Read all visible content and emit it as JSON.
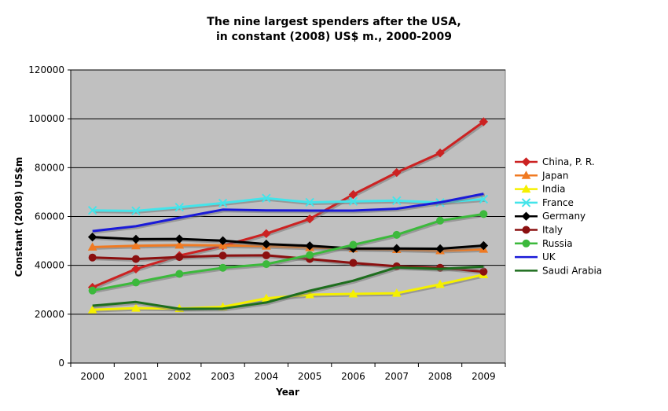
{
  "chart_data": {
    "type": "line",
    "title_lines": [
      "The nine largest spenders after the USA,",
      "in constant (2008) US$ m., 2000-2009"
    ],
    "xlabel": "Year",
    "ylabel": "Constant (2008) US$m",
    "x": [
      "2000",
      "2001",
      "2002",
      "2003",
      "2004",
      "2005",
      "2006",
      "2007",
      "2008",
      "2009"
    ],
    "ylim": [
      0,
      120000
    ],
    "yticks": [
      "0",
      "20000",
      "40000",
      "60000",
      "80000",
      "100000",
      "120000"
    ],
    "ytick_values": [
      0,
      20000,
      40000,
      60000,
      80000,
      100000,
      120000
    ],
    "grid": true,
    "legend_position": "right",
    "plot_background": "#c0c0c0",
    "series": [
      {
        "name": "China, P. R.",
        "color": "#cc2222",
        "marker": "diamond",
        "values": [
          31000,
          38500,
          44000,
          48000,
          53000,
          59000,
          69000,
          78000,
          86000,
          98800
        ]
      },
      {
        "name": "Japan",
        "color": "#f07a22",
        "marker": "triangle",
        "values": [
          47500,
          48000,
          48300,
          48200,
          47900,
          47300,
          46800,
          46500,
          46000,
          46600
        ]
      },
      {
        "name": "India",
        "color": "#f5f000",
        "marker": "triangle",
        "values": [
          21800,
          22500,
          22300,
          23000,
          26500,
          28000,
          28300,
          28600,
          32200,
          36200
        ]
      },
      {
        "name": "France",
        "color": "#44e4ea",
        "marker": "x",
        "values": [
          62500,
          62300,
          63800,
          65500,
          67500,
          65800,
          66200,
          66500,
          65700,
          67100
        ]
      },
      {
        "name": "Germany",
        "color": "#000000",
        "marker": "diamond",
        "values": [
          51600,
          50700,
          50800,
          50100,
          48700,
          48000,
          46900,
          46900,
          46800,
          48100
        ]
      },
      {
        "name": "Italy",
        "color": "#8b1010",
        "marker": "circle",
        "values": [
          43200,
          42600,
          43400,
          44000,
          44100,
          42600,
          41000,
          39600,
          39000,
          37400
        ]
      },
      {
        "name": "Russia",
        "color": "#3cb93c",
        "marker": "circle",
        "values": [
          29700,
          33000,
          36500,
          39000,
          40500,
          44200,
          48400,
          52500,
          58300,
          61000
        ]
      },
      {
        "name": "UK",
        "color": "#1a1ad8",
        "marker": "none",
        "values": [
          54000,
          56000,
          59500,
          62800,
          62500,
          62400,
          62400,
          63200,
          65800,
          69300
        ]
      },
      {
        "name": "Saudi Arabia",
        "color": "#1e6e1e",
        "marker": "none",
        "values": [
          23500,
          25000,
          22200,
          22300,
          24800,
          29600,
          33700,
          39200,
          38500,
          39500
        ]
      }
    ]
  }
}
